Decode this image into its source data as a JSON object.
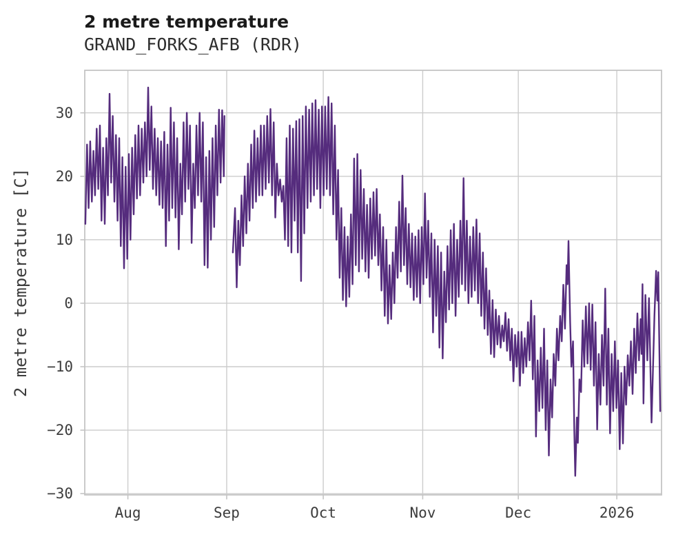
{
  "chart_data": {
    "type": "line",
    "title": "2 metre temperature",
    "subtitle": "GRAND_FORKS_AFB (RDR)",
    "ylabel": "2 metre temperature [C]",
    "xlabel": "",
    "series_name": "2 metre temperature",
    "line_color": "#552c7d",
    "grid_color": "#cccccc",
    "spine_color": "#c4c4c4",
    "background_color": "#ffffff",
    "grid": true,
    "legend_position": "none",
    "x_unit": "day index along time axis (month boundaries given by xticks)",
    "xlim": [
      0,
      179.2
    ],
    "ylim": [
      -30.2,
      36.7
    ],
    "yticks": [
      {
        "v": 30,
        "label": "30"
      },
      {
        "v": 20,
        "label": "20"
      },
      {
        "v": 10,
        "label": "10"
      },
      {
        "v": 0,
        "label": "0"
      },
      {
        "v": -10,
        "label": "−10"
      },
      {
        "v": -20,
        "label": "−20"
      },
      {
        "v": -30,
        "label": "−30"
      }
    ],
    "xticks": [
      {
        "d": 13.4,
        "label": "Aug"
      },
      {
        "d": 44.1,
        "label": "Sep"
      },
      {
        "d": 74.1,
        "label": "Oct"
      },
      {
        "d": 105.0,
        "label": "Nov"
      },
      {
        "d": 134.7,
        "label": "Dec"
      },
      {
        "d": 165.3,
        "label": "2026"
      }
    ],
    "data_gap_days": [
      43.4,
      46.0
    ],
    "points": [
      [
        0.2,
        12.5
      ],
      [
        0.7,
        25
      ],
      [
        1.2,
        15
      ],
      [
        1.7,
        25.5
      ],
      [
        2.2,
        16
      ],
      [
        2.7,
        24
      ],
      [
        3.2,
        17
      ],
      [
        3.7,
        27.5
      ],
      [
        4.2,
        18
      ],
      [
        4.7,
        28
      ],
      [
        5.2,
        13
      ],
      [
        5.7,
        24.5
      ],
      [
        6.2,
        12.5
      ],
      [
        6.7,
        26
      ],
      [
        7.2,
        17
      ],
      [
        7.7,
        33
      ],
      [
        8.2,
        19
      ],
      [
        8.7,
        29.5
      ],
      [
        9.2,
        16
      ],
      [
        9.7,
        26.5
      ],
      [
        10.2,
        13
      ],
      [
        10.7,
        26
      ],
      [
        11.2,
        9
      ],
      [
        11.7,
        23
      ],
      [
        12.2,
        5.5
      ],
      [
        12.7,
        21.5
      ],
      [
        13.2,
        7
      ],
      [
        13.7,
        23.5
      ],
      [
        14.2,
        10
      ],
      [
        14.7,
        24.5
      ],
      [
        15.2,
        14
      ],
      [
        15.7,
        26.5
      ],
      [
        16.2,
        16.5
      ],
      [
        16.7,
        28
      ],
      [
        17.2,
        17
      ],
      [
        17.7,
        27.5
      ],
      [
        18.2,
        19
      ],
      [
        18.7,
        28.5
      ],
      [
        19.2,
        20
      ],
      [
        19.7,
        34
      ],
      [
        20.2,
        21
      ],
      [
        20.7,
        31
      ],
      [
        21.2,
        18
      ],
      [
        21.7,
        27.5
      ],
      [
        22.2,
        17
      ],
      [
        22.7,
        26
      ],
      [
        23.2,
        15.5
      ],
      [
        23.7,
        25.5
      ],
      [
        24.2,
        15
      ],
      [
        24.7,
        27
      ],
      [
        25.2,
        9
      ],
      [
        25.7,
        25
      ],
      [
        26.2,
        13
      ],
      [
        26.7,
        30.8
      ],
      [
        27.2,
        15
      ],
      [
        27.7,
        28.5
      ],
      [
        28.2,
        13.5
      ],
      [
        28.7,
        26
      ],
      [
        29.2,
        8.5
      ],
      [
        29.7,
        22
      ],
      [
        30.2,
        14
      ],
      [
        30.7,
        28.5
      ],
      [
        31.2,
        16
      ],
      [
        31.7,
        30
      ],
      [
        32.2,
        18
      ],
      [
        32.7,
        28
      ],
      [
        33.2,
        9.5
      ],
      [
        33.7,
        22
      ],
      [
        34.2,
        15
      ],
      [
        34.7,
        28
      ],
      [
        35.2,
        17
      ],
      [
        35.7,
        30
      ],
      [
        36.2,
        16
      ],
      [
        36.7,
        28.5
      ],
      [
        37.2,
        6
      ],
      [
        37.7,
        23
      ],
      [
        38.2,
        5.6
      ],
      [
        38.7,
        24
      ],
      [
        39.2,
        10
      ],
      [
        39.7,
        26
      ],
      [
        40.2,
        12
      ],
      [
        40.7,
        28
      ],
      [
        41.2,
        17
      ],
      [
        41.7,
        30.5
      ],
      [
        42.2,
        19
      ],
      [
        42.7,
        30.4
      ],
      [
        43.2,
        20
      ],
      [
        43.4,
        29.5
      ],
      null,
      [
        46,
        8
      ],
      [
        46.7,
        15
      ],
      [
        47.2,
        2.5
      ],
      [
        47.7,
        13
      ],
      [
        48.2,
        6
      ],
      [
        48.7,
        17
      ],
      [
        49.2,
        9
      ],
      [
        49.7,
        20
      ],
      [
        50.2,
        11
      ],
      [
        50.7,
        22
      ],
      [
        51.2,
        13
      ],
      [
        51.7,
        25
      ],
      [
        52.2,
        15
      ],
      [
        52.7,
        27.2
      ],
      [
        53.2,
        16
      ],
      [
        53.7,
        26
      ],
      [
        54.2,
        17
      ],
      [
        54.7,
        28
      ],
      [
        55.2,
        17
      ],
      [
        55.7,
        28
      ],
      [
        56.2,
        18
      ],
      [
        56.7,
        29.5
      ],
      [
        57.2,
        19
      ],
      [
        57.7,
        30.6
      ],
      [
        58.2,
        17
      ],
      [
        58.7,
        28.5
      ],
      [
        59.2,
        13.5
      ],
      [
        59.7,
        22
      ],
      [
        60.2,
        17
      ],
      [
        60.7,
        19.5
      ],
      [
        61.2,
        16
      ],
      [
        61.7,
        18.5
      ],
      [
        62.2,
        10
      ],
      [
        62.7,
        26
      ],
      [
        63.2,
        9
      ],
      [
        63.7,
        28
      ],
      [
        64.2,
        8
      ],
      [
        64.7,
        27.5
      ],
      [
        65.2,
        13
      ],
      [
        65.7,
        28.7
      ],
      [
        66.2,
        8
      ],
      [
        66.7,
        29
      ],
      [
        67.2,
        3.5
      ],
      [
        67.7,
        29.5
      ],
      [
        68.2,
        11
      ],
      [
        68.7,
        31
      ],
      [
        69.2,
        15
      ],
      [
        69.7,
        30.5
      ],
      [
        70.2,
        16
      ],
      [
        70.7,
        31.5
      ],
      [
        71.2,
        17
      ],
      [
        71.7,
        32
      ],
      [
        72.2,
        18
      ],
      [
        72.7,
        30.5
      ],
      [
        73.2,
        15
      ],
      [
        73.7,
        31
      ],
      [
        74.2,
        17
      ],
      [
        74.7,
        31
      ],
      [
        75.2,
        18
      ],
      [
        75.7,
        32.5
      ],
      [
        76.2,
        17
      ],
      [
        76.7,
        31.5
      ],
      [
        77.2,
        14
      ],
      [
        77.7,
        28
      ],
      [
        78.2,
        10
      ],
      [
        78.7,
        21
      ],
      [
        79.2,
        4
      ],
      [
        79.7,
        15
      ],
      [
        80.2,
        0.5
      ],
      [
        80.7,
        12
      ],
      [
        81.2,
        -0.5
      ],
      [
        81.7,
        10.5
      ],
      [
        82.2,
        1
      ],
      [
        82.7,
        14
      ],
      [
        83.2,
        3
      ],
      [
        83.7,
        22.8
      ],
      [
        84.2,
        6
      ],
      [
        84.7,
        23.5
      ],
      [
        85.2,
        5
      ],
      [
        85.7,
        21
      ],
      [
        86.2,
        7
      ],
      [
        86.7,
        18
      ],
      [
        87.2,
        5
      ],
      [
        87.7,
        15.5
      ],
      [
        88.2,
        4
      ],
      [
        88.7,
        16.5
      ],
      [
        89.2,
        7
      ],
      [
        89.7,
        17.5
      ],
      [
        90.2,
        7.5
      ],
      [
        90.7,
        18
      ],
      [
        91.2,
        6
      ],
      [
        91.7,
        14
      ],
      [
        92.2,
        2
      ],
      [
        92.7,
        12
      ],
      [
        93.2,
        -2
      ],
      [
        93.7,
        10
      ],
      [
        94.2,
        -3.2
      ],
      [
        94.7,
        6
      ],
      [
        95.2,
        -2.5
      ],
      [
        95.7,
        8
      ],
      [
        96.2,
        0
      ],
      [
        96.7,
        12
      ],
      [
        97.2,
        4
      ],
      [
        97.7,
        16
      ],
      [
        98.2,
        5
      ],
      [
        98.7,
        20.1
      ],
      [
        99.2,
        6
      ],
      [
        99.7,
        15
      ],
      [
        100.2,
        3
      ],
      [
        100.7,
        12.5
      ],
      [
        101.2,
        2.5
      ],
      [
        101.7,
        11
      ],
      [
        102.2,
        0.5
      ],
      [
        102.7,
        10.5
      ],
      [
        103.2,
        1
      ],
      [
        103.7,
        11.5
      ],
      [
        104.2,
        0
      ],
      [
        104.7,
        12
      ],
      [
        105.2,
        3
      ],
      [
        105.7,
        17.3
      ],
      [
        106.2,
        4
      ],
      [
        106.7,
        13
      ],
      [
        107.2,
        1
      ],
      [
        107.7,
        11
      ],
      [
        108.2,
        -4.6
      ],
      [
        108.7,
        10
      ],
      [
        109.2,
        -2
      ],
      [
        109.7,
        9
      ],
      [
        110.2,
        -7
      ],
      [
        110.7,
        8
      ],
      [
        111.2,
        -8.7
      ],
      [
        111.7,
        5
      ],
      [
        112.2,
        -3
      ],
      [
        112.7,
        9
      ],
      [
        113.2,
        -1
      ],
      [
        113.7,
        11.5
      ],
      [
        114.2,
        0
      ],
      [
        114.7,
        12.5
      ],
      [
        115.2,
        -2
      ],
      [
        115.7,
        10
      ],
      [
        116.2,
        1
      ],
      [
        116.7,
        13
      ],
      [
        117.2,
        3
      ],
      [
        117.7,
        19.7
      ],
      [
        118.2,
        2
      ],
      [
        118.7,
        13
      ],
      [
        119.2,
        0
      ],
      [
        119.7,
        10.5
      ],
      [
        120.2,
        1
      ],
      [
        120.7,
        12
      ],
      [
        121.2,
        2
      ],
      [
        121.7,
        13.2
      ],
      [
        122.2,
        0
      ],
      [
        122.7,
        11
      ],
      [
        123.2,
        -2
      ],
      [
        123.7,
        8
      ],
      [
        124.2,
        -4
      ],
      [
        124.7,
        5.5
      ],
      [
        125.2,
        -5
      ],
      [
        125.7,
        2
      ],
      [
        126.2,
        -8
      ],
      [
        126.7,
        0.5
      ],
      [
        127.2,
        -8.5
      ],
      [
        127.7,
        -1
      ],
      [
        128.2,
        -6.5
      ],
      [
        128.7,
        -2
      ],
      [
        129.2,
        -7
      ],
      [
        129.7,
        -3.5
      ],
      [
        130.2,
        -6
      ],
      [
        130.7,
        -1.5
      ],
      [
        131.2,
        -7.5
      ],
      [
        131.7,
        -2.5
      ],
      [
        132.2,
        -9
      ],
      [
        132.7,
        -4
      ],
      [
        133.2,
        -12.3
      ],
      [
        133.7,
        -5
      ],
      [
        134.2,
        -10
      ],
      [
        134.7,
        -4.5
      ],
      [
        135.2,
        -13
      ],
      [
        135.7,
        -4.5
      ],
      [
        136.2,
        -11
      ],
      [
        136.7,
        -5.5
      ],
      [
        137.2,
        -10
      ],
      [
        137.7,
        -3
      ],
      [
        138.2,
        -9
      ],
      [
        138.7,
        0.4
      ],
      [
        139.2,
        -12
      ],
      [
        139.7,
        -2
      ],
      [
        140.2,
        -21
      ],
      [
        140.7,
        -9
      ],
      [
        141.2,
        -17
      ],
      [
        141.7,
        -7
      ],
      [
        142.2,
        -16.5
      ],
      [
        142.7,
        -4
      ],
      [
        143.2,
        -20
      ],
      [
        143.7,
        -9
      ],
      [
        144.2,
        -24
      ],
      [
        144.7,
        -12
      ],
      [
        145.2,
        -18
      ],
      [
        145.7,
        -8
      ],
      [
        146.2,
        -13
      ],
      [
        146.7,
        -4
      ],
      [
        147.2,
        -9
      ],
      [
        147.7,
        -2
      ],
      [
        148.2,
        -6
      ],
      [
        148.7,
        2.9
      ],
      [
        149.2,
        -4
      ],
      [
        149.7,
        6
      ],
      [
        150,
        3
      ],
      [
        150.3,
        9.8
      ],
      [
        150.8,
        -3
      ],
      [
        151.2,
        -10
      ],
      [
        151.7,
        -6
      ],
      [
        152.1,
        -20
      ],
      [
        152.4,
        -27.2
      ],
      [
        152.9,
        -18
      ],
      [
        153.2,
        -22
      ],
      [
        153.7,
        -12
      ],
      [
        154.2,
        -14
      ],
      [
        154.7,
        -2.7
      ],
      [
        155.2,
        -10
      ],
      [
        155.7,
        -0.5
      ],
      [
        156.2,
        -9.5
      ],
      [
        156.7,
        0
      ],
      [
        157.2,
        -10.5
      ],
      [
        157.7,
        -0.2
      ],
      [
        158.2,
        -13
      ],
      [
        158.7,
        -3
      ],
      [
        159.2,
        -19.9
      ],
      [
        159.7,
        -8
      ],
      [
        160.2,
        -16
      ],
      [
        160.7,
        -5
      ],
      [
        161.2,
        -13
      ],
      [
        161.7,
        2.3
      ],
      [
        162.2,
        -16
      ],
      [
        162.7,
        -4
      ],
      [
        163.2,
        -20.5
      ],
      [
        163.7,
        -8
      ],
      [
        164.2,
        -17
      ],
      [
        164.7,
        -6
      ],
      [
        165.2,
        -16.5
      ],
      [
        165.7,
        -9
      ],
      [
        166.2,
        -23
      ],
      [
        166.7,
        -11
      ],
      [
        167.2,
        -22.1
      ],
      [
        167.7,
        -10
      ],
      [
        168.2,
        -16
      ],
      [
        168.7,
        -8.2
      ],
      [
        169.2,
        -13
      ],
      [
        169.7,
        -6
      ],
      [
        170.2,
        -14.3
      ],
      [
        170.7,
        -4
      ],
      [
        171.2,
        -11
      ],
      [
        171.7,
        -1.6
      ],
      [
        172.2,
        -9
      ],
      [
        172.7,
        -2.5
      ],
      [
        173,
        -8
      ],
      [
        173.3,
        3
      ],
      [
        173.6,
        -15.8
      ],
      [
        174.2,
        1.3
      ],
      [
        174.8,
        -9
      ],
      [
        175.3,
        0.8
      ],
      [
        176.1,
        -18.8
      ],
      [
        177,
        -2
      ],
      [
        177.5,
        5.1
      ],
      [
        177.9,
        0.4
      ],
      [
        178.2,
        4.9
      ],
      [
        178.8,
        -17
      ]
    ]
  }
}
